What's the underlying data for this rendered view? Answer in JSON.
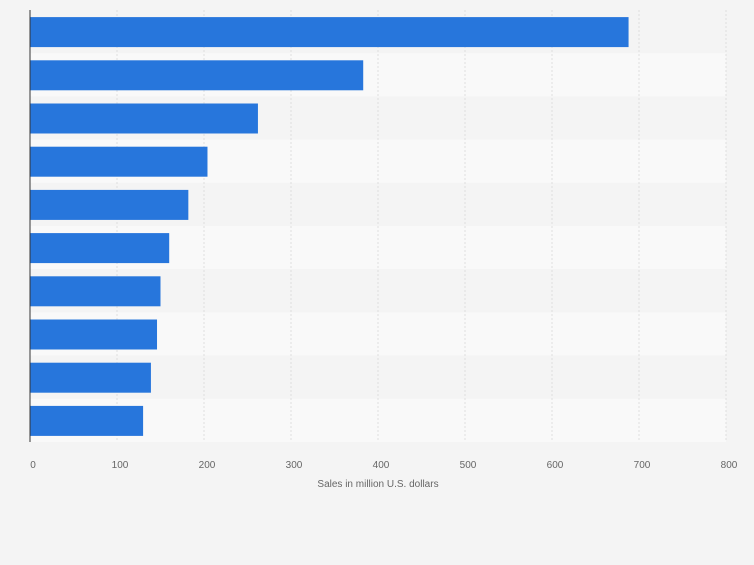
{
  "chart_data": {
    "type": "bar",
    "orientation": "horizontal",
    "categories": [
      "",
      "",
      "",
      "",
      "",
      "",
      "",
      "",
      "",
      ""
    ],
    "values": [
      688,
      383,
      262,
      204,
      182,
      160,
      150,
      146,
      139,
      130
    ],
    "xlabel": "Sales in million U.S. dollars",
    "ylabel": "",
    "xlim": [
      0,
      800
    ],
    "ticks": [
      0,
      100,
      200,
      300,
      400,
      500,
      600,
      700,
      800
    ],
    "tick_labels": [
      "0",
      "100",
      "200",
      "300",
      "400",
      "500",
      "600",
      "700",
      "800"
    ],
    "grid": true,
    "bar_color": "#2776dc",
    "band_colors": [
      "#f4f4f4",
      "#f9f9f9"
    ]
  }
}
